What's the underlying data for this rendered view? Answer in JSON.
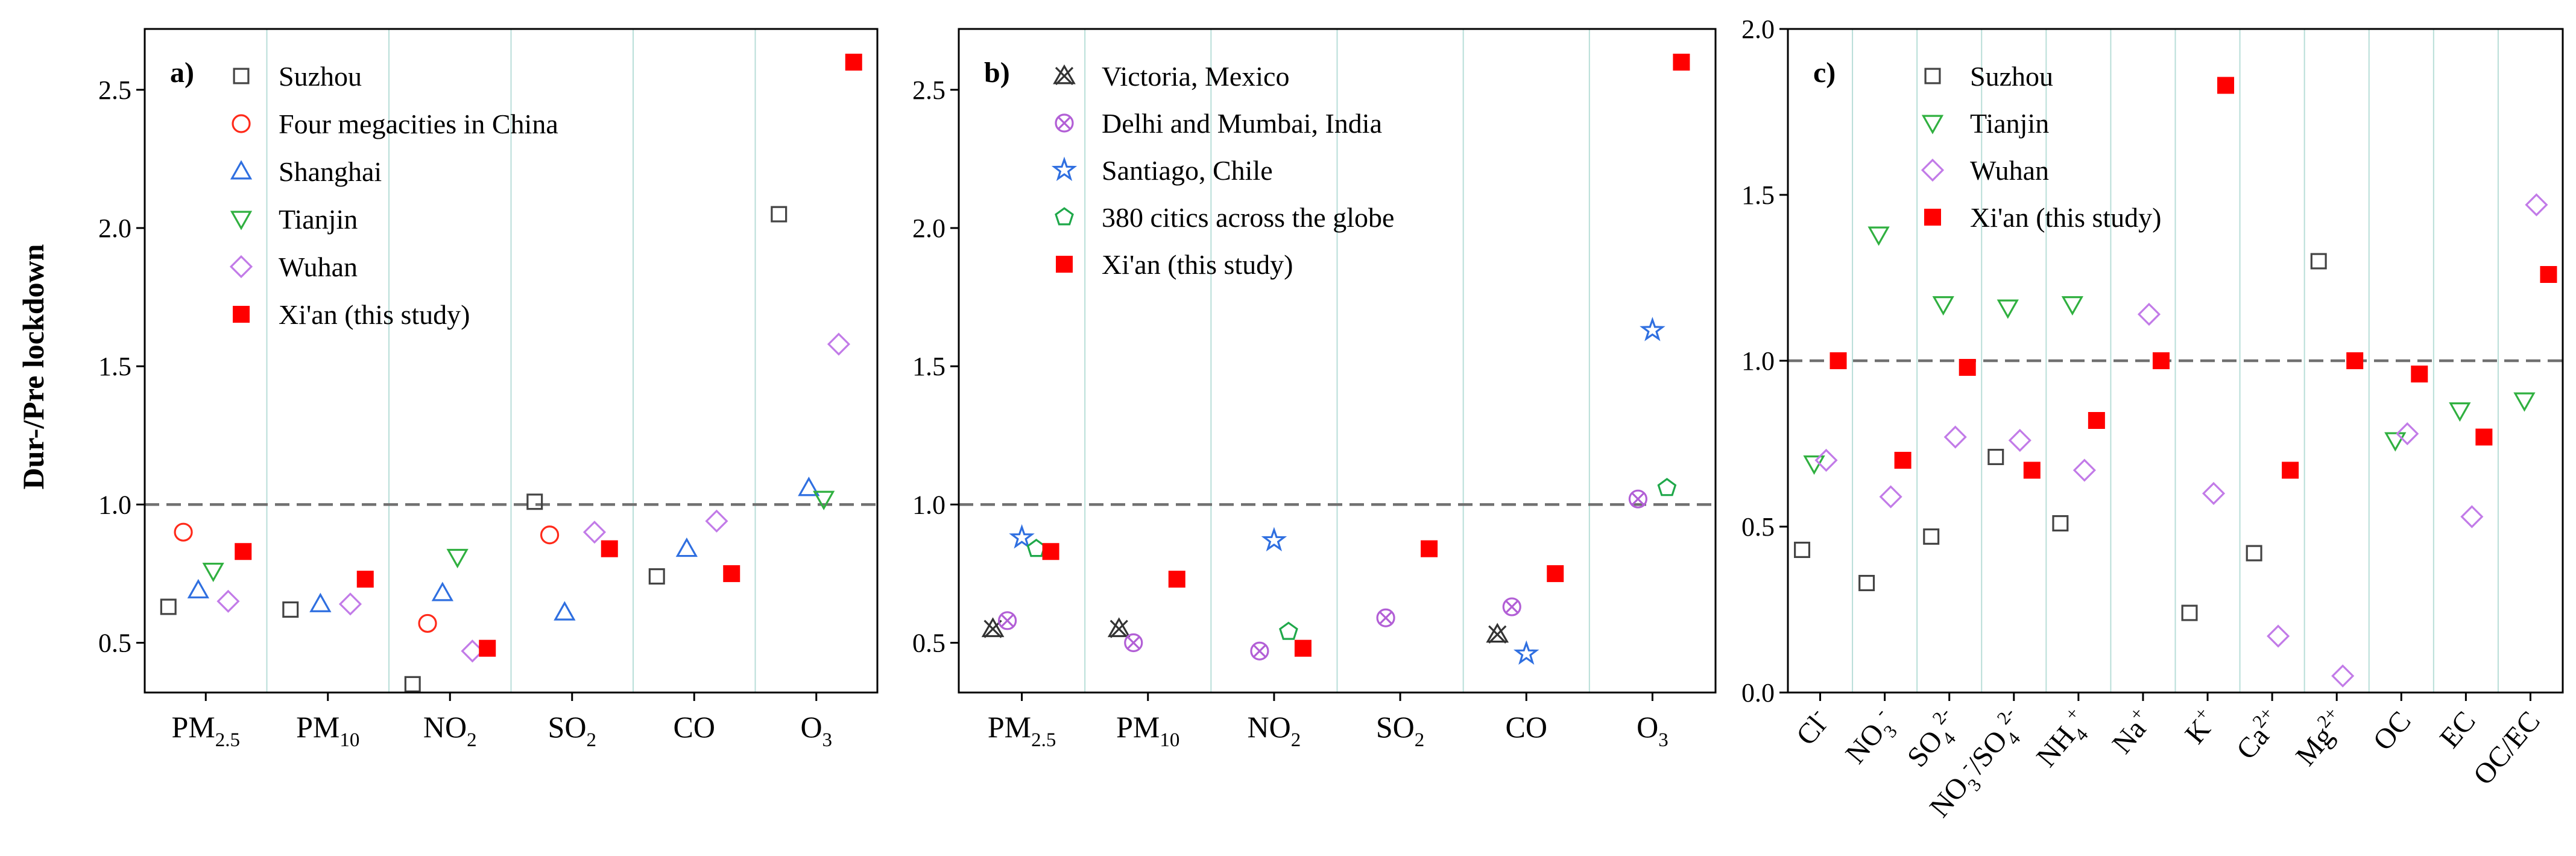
{
  "figure": {
    "ylabel": "Dur-/Pre lockdown",
    "colors": {
      "suzhou": "#444444",
      "four": "#ff2a1a",
      "shanghai": "#2f6fe0",
      "tianjin": "#30b040",
      "wuhan": "#c27be8",
      "xian": "#ff0000",
      "victoria": "#333333",
      "delhi": "#b25fd6",
      "santiago": "#2f6fe0",
      "global380": "#1fa84a",
      "sep": "#b8ded8",
      "refline": "#707070"
    }
  },
  "chart_data": [
    {
      "type": "scatter",
      "panel_label": "a)",
      "ylabel": "Dur-/Pre lockdown",
      "ylim": [
        0.32,
        2.72
      ],
      "yticks": [
        0.5,
        1.0,
        1.5,
        2.0,
        2.5
      ],
      "ytick_labels": [
        "0.5",
        "1.0",
        "1.5",
        "2.0",
        "2.5"
      ],
      "reference_line": 1.0,
      "categories": [
        {
          "base": "PM",
          "sub": "2.5",
          "sup": ""
        },
        {
          "base": "PM",
          "sub": "10",
          "sup": ""
        },
        {
          "base": "NO",
          "sub": "2",
          "sup": ""
        },
        {
          "base": "SO",
          "sub": "2",
          "sup": ""
        },
        {
          "base": "CO",
          "sub": "",
          "sup": ""
        },
        {
          "base": "O",
          "sub": "3",
          "sup": ""
        }
      ],
      "legend_position": "top-left",
      "series": [
        {
          "name": "Suzhou",
          "marker": "square-open",
          "color": "#444444",
          "values": [
            0.63,
            0.62,
            0.35,
            1.01,
            0.74,
            2.05
          ]
        },
        {
          "name": "Four megacities in China",
          "marker": "circle-open",
          "color": "#ff2a1a",
          "values": [
            0.9,
            null,
            0.57,
            0.89,
            null,
            null
          ]
        },
        {
          "name": "Shanghai",
          "marker": "triangle-up-open",
          "color": "#2f6fe0",
          "values": [
            0.69,
            0.64,
            0.68,
            0.61,
            0.84,
            1.06
          ]
        },
        {
          "name": "Tianjin",
          "marker": "triangle-down-open",
          "color": "#30b040",
          "values": [
            0.76,
            null,
            0.81,
            null,
            null,
            1.02
          ]
        },
        {
          "name": "Wuhan",
          "marker": "diamond-open",
          "color": "#c27be8",
          "values": [
            0.65,
            0.64,
            0.47,
            0.9,
            0.94,
            1.58
          ]
        },
        {
          "name": "Xi'an (this study)",
          "marker": "square-filled",
          "color": "#ff0000",
          "values": [
            0.83,
            0.73,
            0.48,
            0.84,
            0.75,
            2.6
          ]
        }
      ]
    },
    {
      "type": "scatter",
      "panel_label": "b)",
      "ylim": [
        0.32,
        2.72
      ],
      "yticks": [
        0.5,
        1.0,
        1.5,
        2.0,
        2.5
      ],
      "ytick_labels": [
        "0.5",
        "1.0",
        "1.5",
        "2.0",
        "2.5"
      ],
      "reference_line": 1.0,
      "categories": [
        {
          "base": "PM",
          "sub": "2.5",
          "sup": ""
        },
        {
          "base": "PM",
          "sub": "10",
          "sup": ""
        },
        {
          "base": "NO",
          "sub": "2",
          "sup": ""
        },
        {
          "base": "SO",
          "sub": "2",
          "sup": ""
        },
        {
          "base": "CO",
          "sub": "",
          "sup": ""
        },
        {
          "base": "O",
          "sub": "3",
          "sup": ""
        }
      ],
      "legend_position": "top-left",
      "series": [
        {
          "name": "Victoria, Mexico",
          "marker": "x-triangle",
          "color": "#333333",
          "values": [
            0.55,
            0.55,
            null,
            null,
            0.53,
            null
          ]
        },
        {
          "name": "Delhi and Mumbai, India",
          "marker": "x-circle",
          "color": "#b25fd6",
          "values": [
            0.58,
            0.5,
            0.47,
            0.59,
            0.63,
            1.02
          ]
        },
        {
          "name": "Santiago, Chile",
          "marker": "star-open",
          "color": "#2f6fe0",
          "values": [
            0.88,
            null,
            0.87,
            null,
            0.46,
            1.63
          ]
        },
        {
          "name": "380 citics across the globe",
          "marker": "pentagon-open",
          "color": "#1fa84a",
          "values": [
            0.84,
            null,
            0.54,
            null,
            null,
            1.06
          ]
        },
        {
          "name": "Xi'an (this study)",
          "marker": "square-filled",
          "color": "#ff0000",
          "values": [
            0.83,
            0.73,
            0.48,
            0.84,
            0.75,
            2.6
          ]
        }
      ]
    },
    {
      "type": "scatter",
      "panel_label": "c)",
      "ylim": [
        0.0,
        2.0
      ],
      "yticks": [
        0.0,
        0.5,
        1.0,
        1.5,
        2.0
      ],
      "ytick_labels": [
        "0.0",
        "0.5",
        "1.0",
        "1.5",
        "2.0"
      ],
      "reference_line": 1.0,
      "categories": [
        {
          "base": "Cl",
          "sub": "",
          "sup": "-"
        },
        {
          "base": "NO",
          "sub": "3",
          "sup": "-"
        },
        {
          "base": "SO",
          "sub": "4",
          "sup": "2-"
        },
        {
          "base": "NO3-/SO42-",
          "sub": "",
          "sup": ""
        },
        {
          "base": "NH",
          "sub": "4",
          "sup": "+"
        },
        {
          "base": "Na",
          "sub": "",
          "sup": "+"
        },
        {
          "base": "K",
          "sub": "",
          "sup": "+"
        },
        {
          "base": "Ca",
          "sub": "",
          "sup": "2+"
        },
        {
          "base": "Mg",
          "sub": "",
          "sup": "2+"
        },
        {
          "base": "OC",
          "sub": "",
          "sup": ""
        },
        {
          "base": "EC",
          "sub": "",
          "sup": ""
        },
        {
          "base": "OC/EC",
          "sub": "",
          "sup": ""
        }
      ],
      "legend_position": "top-left",
      "series": [
        {
          "name": "Suzhou",
          "marker": "square-open",
          "color": "#444444",
          "values": [
            0.43,
            0.33,
            0.47,
            0.71,
            0.51,
            null,
            0.24,
            0.42,
            1.3,
            null,
            null,
            null
          ]
        },
        {
          "name": "Tianjin",
          "marker": "triangle-down-open",
          "color": "#30b040",
          "values": [
            0.69,
            1.38,
            1.17,
            1.16,
            1.17,
            null,
            null,
            null,
            null,
            0.76,
            0.85,
            0.88
          ]
        },
        {
          "name": "Wuhan",
          "marker": "diamond-open",
          "color": "#c27be8",
          "values": [
            0.7,
            0.59,
            0.77,
            0.76,
            0.67,
            1.14,
            0.6,
            0.17,
            0.05,
            0.78,
            0.53,
            1.47
          ]
        },
        {
          "name": "Xi'an (this study)",
          "marker": "square-filled",
          "color": "#ff0000",
          "values": [
            1.0,
            0.7,
            0.98,
            0.67,
            0.82,
            1.0,
            1.83,
            0.67,
            1.0,
            0.96,
            0.77,
            1.26
          ]
        }
      ]
    }
  ]
}
